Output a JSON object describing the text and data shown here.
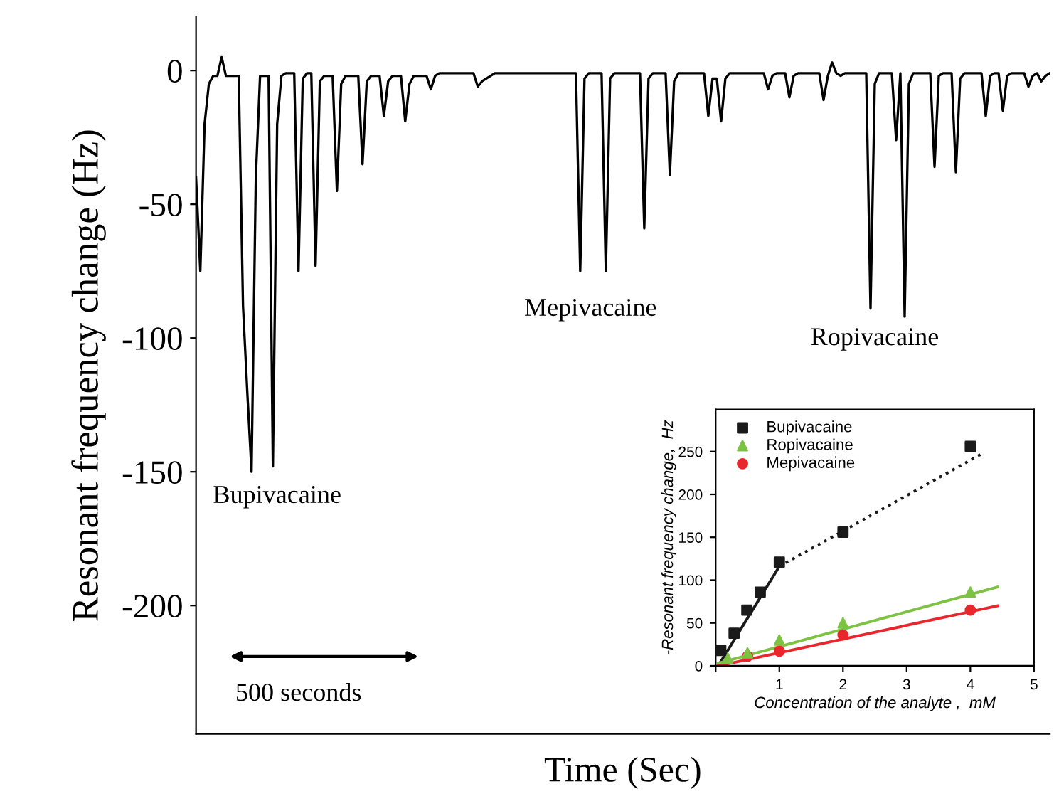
{
  "chart_data": [
    {
      "type": "line",
      "xlabel": "Time (Sec)",
      "ylabel": "Resonant frequency change (Hz)",
      "ylim": [
        -248,
        20
      ],
      "yticks": [
        {
          "value": 0,
          "label": "0"
        },
        {
          "value": -50,
          "label": "-50"
        },
        {
          "value": -100,
          "label": "-100"
        },
        {
          "value": -150,
          "label": "-150"
        },
        {
          "value": -200,
          "label": "-200"
        }
      ],
      "grid": false,
      "legend": false,
      "annotations": [
        "Bupivacaine",
        "Mepivacaine",
        "Ropivacaine",
        "500 seconds"
      ],
      "categories": [
        null,
        null,
        null,
        null,
        null,
        null,
        null,
        null,
        null,
        null,
        null,
        null,
        null,
        null,
        null,
        null,
        null,
        null,
        null,
        null,
        null,
        null,
        null,
        null,
        null,
        null,
        null,
        null,
        null,
        null,
        null,
        null,
        null,
        null,
        null,
        null,
        null,
        null,
        null,
        null,
        null,
        null,
        null,
        null,
        null,
        null,
        null,
        null,
        null,
        null,
        null,
        null,
        null,
        null,
        null,
        null,
        null,
        null,
        null,
        null,
        null,
        null,
        null,
        null,
        null,
        null,
        null,
        null,
        null,
        null,
        null,
        null,
        null,
        null,
        null,
        null,
        null,
        null,
        null,
        null,
        null,
        null,
        null,
        null,
        null,
        null,
        null,
        null,
        null,
        null,
        null,
        null,
        null,
        null,
        null,
        null,
        null,
        null,
        null,
        null,
        null,
        null,
        null,
        null,
        null,
        null,
        null,
        null,
        null,
        null,
        null,
        null,
        null,
        null,
        null,
        null,
        null,
        null,
        null,
        null,
        null,
        null,
        null,
        null,
        null,
        null,
        null,
        null,
        null,
        null,
        null,
        null,
        null,
        null,
        null,
        null,
        null,
        null,
        null,
        null,
        null,
        null,
        null,
        null,
        null,
        null,
        null,
        null,
        null,
        null,
        null,
        null,
        null,
        null,
        null,
        null,
        null,
        null,
        null,
        null,
        null,
        null,
        null,
        null,
        null,
        null,
        null,
        null,
        null,
        null,
        null,
        null,
        null,
        null,
        null,
        null,
        null,
        null,
        null,
        null,
        null,
        null,
        null,
        null,
        null,
        null,
        null,
        null,
        null,
        null,
        null,
        null,
        null,
        null,
        null,
        null,
        null,
        null,
        null,
        null,
        null
      ],
      "series": [
        {
          "color": "#000000",
          "values": [
            -40,
            -75,
            -20,
            -5,
            -2,
            -2,
            5,
            -2,
            -2,
            -2,
            -2,
            -88,
            -120,
            -150,
            -40,
            -2,
            -2,
            -2,
            -148,
            -20,
            -2,
            -1,
            -1,
            -1,
            -75,
            -3,
            -1,
            -1,
            -73,
            -4,
            -2,
            -2,
            -2,
            -45,
            -5,
            -2,
            -2,
            -2,
            -2,
            -35,
            -4,
            -2,
            -2,
            -2,
            -17,
            -4,
            -2,
            -2,
            -2,
            -19,
            -5,
            -2,
            -2,
            -2,
            -2,
            -7,
            -2,
            -1,
            -1,
            -1,
            -1,
            -1,
            -1,
            -1,
            -1,
            -1,
            -6,
            -4,
            -3,
            -2,
            -1,
            -1,
            -1,
            -1,
            -1,
            -1,
            -1,
            -1,
            -1,
            -1,
            -1,
            -1,
            -1,
            -1,
            -1,
            -1,
            -1,
            -1,
            -1,
            -1,
            -75,
            -3,
            -1,
            -1,
            -1,
            -1,
            -75,
            -3,
            -1,
            -1,
            -1,
            -1,
            -1,
            -1,
            -1,
            -59,
            -3,
            -1,
            -1,
            -1,
            -1,
            -39,
            -4,
            -1,
            -1,
            -1,
            -1,
            -1,
            -1,
            -1,
            -17,
            -3,
            -3,
            -19,
            -3,
            -1,
            -1,
            -1,
            -1,
            -1,
            -1,
            -1,
            -1,
            -1,
            -7,
            -2,
            -1,
            -1,
            -1,
            -10,
            -2,
            -1,
            -1,
            -1,
            -1,
            -1,
            -1,
            -11,
            -2,
            3,
            -1,
            -2,
            -1,
            -1,
            -1,
            -1,
            -1,
            -1,
            -89,
            -5,
            -1,
            -1,
            -1,
            -1,
            -26,
            -1,
            -92,
            -5,
            -1,
            -1,
            -1,
            -1,
            -1,
            -36,
            -2,
            -1,
            -1,
            -1,
            -38,
            -3,
            -1,
            -1,
            -1,
            -1,
            -1,
            -17,
            -2,
            -1,
            -1,
            -15,
            -2,
            -1,
            -1,
            -1,
            -1,
            -6,
            -2,
            -1,
            -4,
            -2,
            -1
          ]
        }
      ]
    },
    {
      "type": "scatter",
      "xlabel": "Concentration of the analyte ,  mM",
      "ylabel": "-Resonant frequency change,  Hz",
      "xlim": [
        0,
        5
      ],
      "ylim": [
        0,
        299
      ],
      "xticks": [
        {
          "value": 0,
          "label": null
        },
        1,
        2,
        3,
        4,
        5
      ],
      "yticks": [
        0,
        50,
        100,
        150,
        200,
        250
      ],
      "grid": false,
      "legend": "top left",
      "series": [
        {
          "name": "Bupivacaine",
          "type": "scatter",
          "marker": "square",
          "color": "#1a1a1a",
          "x": [
            0.08,
            0.29,
            0.49,
            0.7,
            1,
            2,
            4
          ],
          "values": [
            18,
            38,
            65,
            86,
            121,
            156,
            256
          ]
        },
        {
          "name": "Ropivacaine",
          "type": "scatter",
          "marker": "triangle",
          "color": "#7dc242",
          "x": [
            0.19,
            0.5,
            1,
            2,
            4
          ],
          "values": [
            9,
            15,
            30,
            50,
            86
          ]
        },
        {
          "name": "Mepivacaine",
          "type": "scatter",
          "marker": "circle",
          "color": "#e8262b",
          "x": [
            0.5,
            1,
            2,
            4
          ],
          "values": [
            11,
            17,
            36,
            65
          ]
        },
        {
          "type": "line",
          "line_style": "solid",
          "color": "#1a1a1a",
          "x": [
            0.04,
            1
          ],
          "values": [
            0,
            116
          ]
        },
        {
          "type": "line",
          "line_style": "dotted",
          "color": "#1a1a1a",
          "x": [
            1,
            4.17
          ],
          "values": [
            116,
            247
          ]
        },
        {
          "type": "line",
          "line_style": "solid",
          "color": "#7dc242",
          "x": [
            0.04,
            4.43
          ],
          "values": [
            3,
            92
          ]
        },
        {
          "type": "line",
          "line_style": "solid",
          "color": "#e8262b",
          "x": [
            0.04,
            4.43
          ],
          "values": [
            0,
            70
          ]
        }
      ]
    }
  ]
}
